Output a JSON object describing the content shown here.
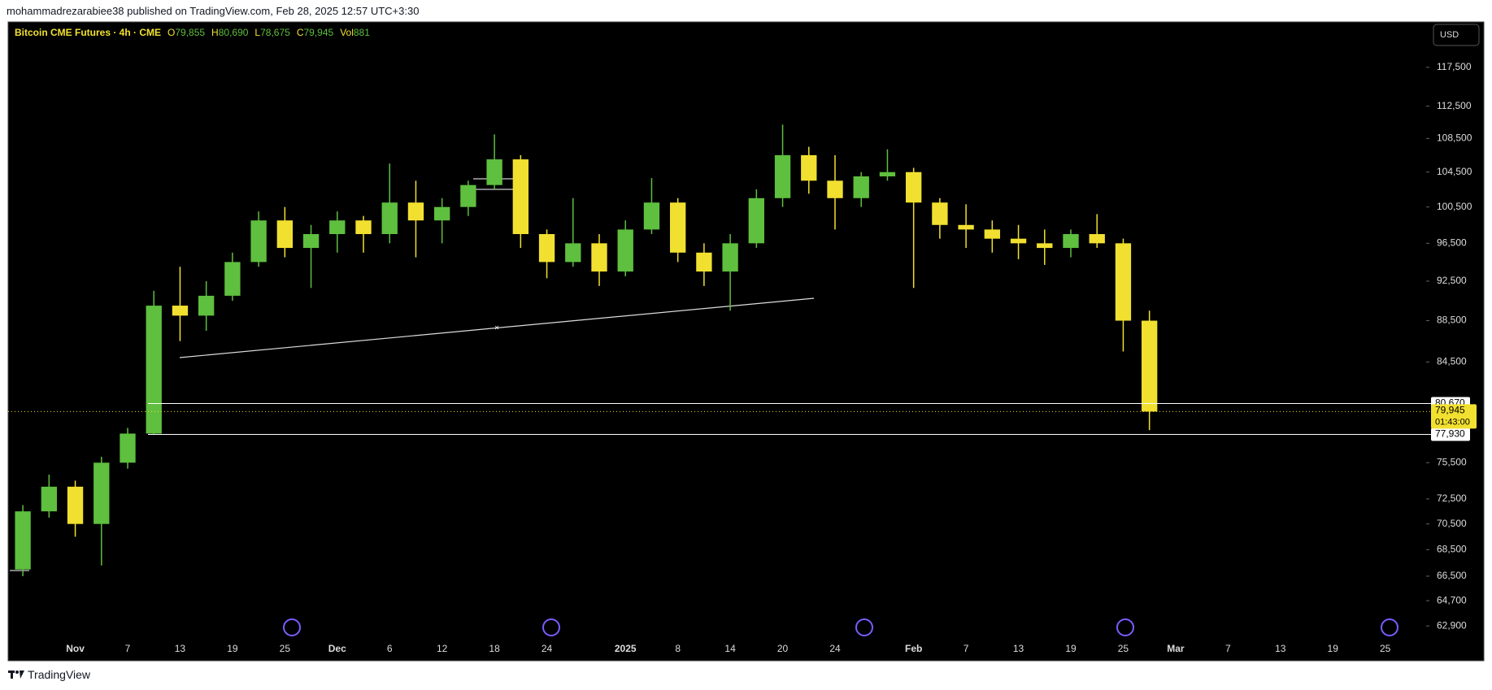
{
  "header": {
    "published": "mohammadrezarabiee38 published on TradingView.com, Feb 28, 2025 12:57 UTC+3:30",
    "brand": "TradingView",
    "currency_button": "USD"
  },
  "chart_data": {
    "type": "candlestick",
    "title": "Bitcoin CME Futures · 4h · CME",
    "legend_fields": [
      {
        "key": "O",
        "value": "79,855"
      },
      {
        "key": "H",
        "value": "80,690"
      },
      {
        "key": "L",
        "value": "78,675"
      },
      {
        "key": "C",
        "value": "79,945"
      },
      {
        "key": "Vol",
        "value": "881"
      }
    ],
    "categories": [
      null,
      null,
      "Nov",
      null,
      "7",
      null,
      "13",
      null,
      "19",
      null,
      "25",
      null,
      "Dec",
      null,
      "6",
      null,
      "12",
      null,
      "18",
      null,
      "24",
      null,
      null,
      "2025",
      null,
      "8",
      null,
      "14",
      null,
      "20",
      null,
      "24",
      null,
      null,
      "Feb",
      null,
      "7",
      null,
      "13",
      null,
      "19",
      null,
      "25",
      null,
      "Mar",
      null,
      "7",
      null,
      "13",
      null,
      "19",
      null,
      "25",
      null
    ],
    "open": [
      67000,
      71500,
      73500,
      70500,
      75500,
      78000,
      90000,
      89000,
      91000,
      94500,
      99000,
      96000,
      97500,
      99000,
      97500,
      101000,
      99000,
      100500,
      103000,
      106000,
      97500,
      94500,
      96500,
      93500,
      98000,
      101000,
      95500,
      93500,
      96500,
      101500,
      106500,
      103500,
      101500,
      104000,
      104500,
      101000,
      98500,
      98000,
      97000,
      96500,
      96000,
      97500,
      96500,
      88500,
      null,
      null,
      null,
      null,
      null,
      null,
      null,
      null,
      null,
      null
    ],
    "high": [
      72000,
      74500,
      74000,
      76000,
      78500,
      91500,
      94000,
      92500,
      95500,
      100000,
      100500,
      98500,
      100000,
      99500,
      105500,
      103500,
      101500,
      103500,
      109000,
      106500,
      98000,
      101500,
      97500,
      99000,
      103800,
      101500,
      96500,
      97500,
      102500,
      110200,
      107500,
      106500,
      104500,
      107200,
      105000,
      101500,
      100800,
      99000,
      98500,
      98000,
      98000,
      99700,
      97000,
      89500,
      null,
      null,
      null,
      null,
      null,
      null,
      null,
      null,
      null,
      null
    ],
    "low": [
      66500,
      71000,
      69500,
      67300,
      75000,
      77900,
      86500,
      87500,
      90500,
      94000,
      95000,
      91800,
      95500,
      95500,
      96500,
      95000,
      96500,
      99500,
      102500,
      96000,
      92800,
      94000,
      92000,
      93000,
      97500,
      94500,
      92000,
      89500,
      96000,
      100500,
      102000,
      98000,
      100500,
      103500,
      91800,
      97000,
      96000,
      95500,
      94800,
      94200,
      95000,
      96000,
      85500,
      78300,
      null,
      null,
      null,
      null,
      null,
      null,
      null,
      null,
      null,
      null
    ],
    "close": [
      71500,
      73500,
      70500,
      75500,
      78000,
      90000,
      89000,
      91000,
      94500,
      99000,
      96000,
      97500,
      99000,
      97500,
      101000,
      99000,
      100500,
      103000,
      106000,
      97500,
      94500,
      96500,
      93500,
      98000,
      101000,
      95500,
      93500,
      96500,
      101500,
      106500,
      103500,
      101500,
      104000,
      104500,
      101000,
      98500,
      98000,
      97000,
      96500,
      96000,
      97500,
      96500,
      88500,
      79945,
      null,
      null,
      null,
      null,
      null,
      null,
      null,
      null,
      null,
      null
    ],
    "up_color": "#5fbf3f",
    "down_color": "#f2e030",
    "log_scale": true,
    "ylim": [
      62000,
      123500
    ],
    "yticks": [
      {
        "value": 117500,
        "label": "117,500"
      },
      {
        "value": 112500,
        "label": "112,500"
      },
      {
        "value": 108500,
        "label": "108,500"
      },
      {
        "value": 104500,
        "label": "104,500"
      },
      {
        "value": 100500,
        "label": "100,500"
      },
      {
        "value": 96500,
        "label": "96,500"
      },
      {
        "value": 92500,
        "label": "92,500"
      },
      {
        "value": 88500,
        "label": "88,500"
      },
      {
        "value": 84500,
        "label": "84,500"
      },
      {
        "value": 75500,
        "label": "75,500"
      },
      {
        "value": 72500,
        "label": "72,500"
      },
      {
        "value": 70500,
        "label": "70,500"
      },
      {
        "value": 68500,
        "label": "68,500"
      },
      {
        "value": 66500,
        "label": "66,500"
      },
      {
        "value": 64700,
        "label": "64,700"
      },
      {
        "value": 62900,
        "label": "62,900"
      }
    ],
    "levels": [
      {
        "value": 80670,
        "label": "80,670"
      },
      {
        "value": 77930,
        "label": "77,930"
      }
    ],
    "last_price": {
      "value": 79945,
      "label": "79,945",
      "countdown": "01:43:00",
      "color": "#f2e030"
    }
  }
}
